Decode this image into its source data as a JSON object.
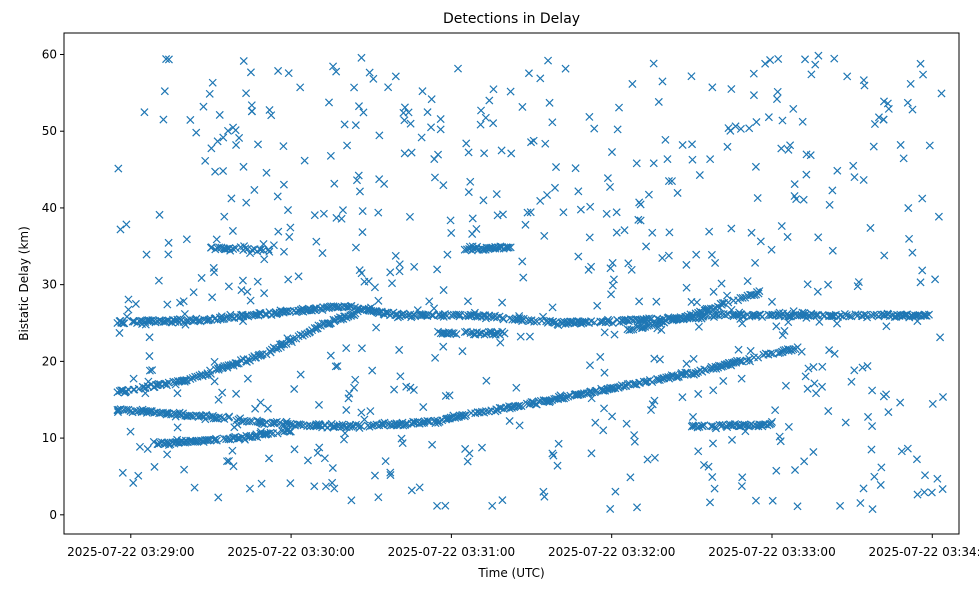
{
  "chart_data": {
    "type": "scatter",
    "title": "Detections in Delay",
    "xlabel": "Time (UTC)",
    "ylabel": "Bistatic Delay (km)",
    "marker": "x",
    "color": "#1f77b4",
    "xlim_seconds_after_03_29_00": [
      -25,
      310
    ],
    "ylim": [
      -2.5,
      62.8
    ],
    "x_ticks": [
      {
        "value": 0,
        "label": "2025-07-22 03:29:00"
      },
      {
        "value": 60,
        "label": "2025-07-22 03:30:00"
      },
      {
        "value": 120,
        "label": "2025-07-22 03:31:00"
      },
      {
        "value": 180,
        "label": "2025-07-22 03:32:00"
      },
      {
        "value": 240,
        "label": "2025-07-22 03:33:00"
      },
      {
        "value": 300,
        "label": "2025-07-22 03:34:00"
      }
    ],
    "y_ticks": [
      {
        "value": 0,
        "label": "0"
      },
      {
        "value": 10,
        "label": "10"
      },
      {
        "value": 20,
        "label": "20"
      },
      {
        "value": 30,
        "label": "30"
      },
      {
        "value": 40,
        "label": "40"
      },
      {
        "value": 50,
        "label": "50"
      },
      {
        "value": 60,
        "label": "60"
      }
    ],
    "tracks": [
      {
        "name": "track-band-25-27",
        "points": [
          [
            -5,
            25
          ],
          [
            30,
            25.5
          ],
          [
            60,
            26.5
          ],
          [
            80,
            27.2
          ],
          [
            100,
            26
          ],
          [
            130,
            26
          ],
          [
            160,
            25
          ],
          [
            200,
            25.5
          ],
          [
            220,
            26
          ],
          [
            260,
            26
          ],
          [
            300,
            26
          ]
        ]
      },
      {
        "name": "track-rising-13-to-22",
        "points": [
          [
            110,
            12
          ],
          [
            150,
            14.5
          ],
          [
            180,
            16.5
          ],
          [
            210,
            18.5
          ],
          [
            240,
            21
          ],
          [
            250,
            21.8
          ]
        ]
      },
      {
        "name": "track-13-to-11",
        "points": [
          [
            -5,
            13.8
          ],
          [
            20,
            13
          ],
          [
            50,
            12
          ],
          [
            80,
            11.5
          ],
          [
            110,
            12
          ]
        ]
      },
      {
        "name": "track-16-to-26",
        "points": [
          [
            -5,
            16
          ],
          [
            20,
            17.5
          ],
          [
            50,
            21
          ],
          [
            70,
            24.5
          ],
          [
            90,
            27
          ]
        ]
      },
      {
        "name": "track-9-to-11",
        "points": [
          [
            10,
            9.3
          ],
          [
            40,
            10
          ],
          [
            60,
            11
          ]
        ]
      },
      {
        "name": "track-24-to-29",
        "points": [
          [
            185,
            24
          ],
          [
            210,
            26
          ],
          [
            235,
            29
          ]
        ]
      },
      {
        "name": "track-23.7",
        "points": [
          [
            115,
            23.7
          ],
          [
            140,
            23.7
          ]
        ]
      },
      {
        "name": "track-34.8-a",
        "points": [
          [
            30,
            34.8
          ],
          [
            52,
            34.5
          ]
        ]
      },
      {
        "name": "track-34.8-b",
        "points": [
          [
            125,
            34.6
          ],
          [
            143,
            34.8
          ]
        ]
      },
      {
        "name": "track-12-right",
        "points": [
          [
            210,
            11.5
          ],
          [
            240,
            11.8
          ]
        ]
      }
    ],
    "noise": {
      "count": 620,
      "seed": 20250722,
      "x_range": [
        -5,
        305
      ],
      "y_range": [
        0.5,
        60
      ]
    }
  }
}
